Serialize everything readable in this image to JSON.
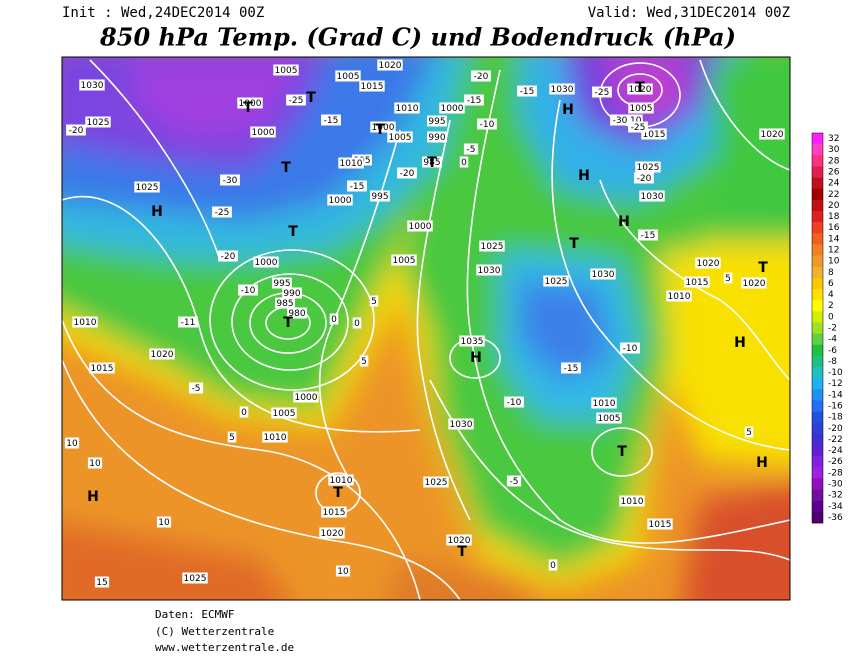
{
  "header": {
    "init": "Init : Wed,24DEC2014 00Z",
    "valid": "Valid: Wed,31DEC2014 00Z",
    "title": "850 hPa Temp. (Grad C) und Bodendruck (hPa)"
  },
  "map": {
    "labels": [
      "1030",
      "1025",
      "1005",
      "1005",
      "1020",
      "1015",
      "1000",
      "1010",
      "1000",
      "995",
      "990",
      "1000",
      "1005",
      "995",
      "985",
      "1010",
      "1000",
      "995",
      "1000",
      "1025",
      "1000",
      "1005",
      "1025",
      "1030",
      "1025",
      "1030",
      "1000",
      "995",
      "990",
      "985",
      "980",
      "1010",
      "1020",
      "1015",
      "1000",
      "1005",
      "1010",
      "1035",
      "1030",
      "1010",
      "1005",
      "1010",
      "1015",
      "1025",
      "1020",
      "1020",
      "1010",
      "1015",
      "1025",
      "1020",
      "1015",
      "1010",
      "1020",
      "1030",
      "1020",
      "1005",
      "1010",
      "1015",
      "1025",
      "1030",
      "1020",
      "-20",
      "-25",
      "-30",
      "-25",
      "-20",
      "-10",
      "-11",
      "-5",
      "0",
      "5",
      "0",
      "0",
      "5",
      "5",
      "-15",
      "-15",
      "-20",
      "-15",
      "-10",
      "-5",
      "0",
      "-20",
      "-15",
      "-25",
      "-30",
      "-25",
      "-20",
      "-15",
      "-15",
      "-10",
      "-10",
      "-5",
      "0",
      "5",
      "5",
      "10",
      "10",
      "10",
      "10",
      "15"
    ],
    "centers": [
      "T",
      "T",
      "T",
      "T",
      "T",
      "T",
      "T",
      "T",
      "T",
      "T",
      "T",
      "T",
      "T",
      "H",
      "H",
      "H",
      "H",
      "H",
      "H",
      "H",
      "H"
    ]
  },
  "legend": {
    "values": [
      32,
      30,
      28,
      26,
      24,
      22,
      20,
      18,
      16,
      14,
      12,
      10,
      8,
      6,
      4,
      2,
      0,
      -2,
      -4,
      -6,
      -8,
      -10,
      -12,
      -14,
      -16,
      -18,
      -20,
      -22,
      -24,
      -26,
      -28,
      -30,
      -32,
      -34,
      -36
    ],
    "colors": [
      "#ff20ff",
      "#ff40c0",
      "#ff3080",
      "#e02050",
      "#c01020",
      "#a00000",
      "#c01010",
      "#e02020",
      "#f04020",
      "#f06020",
      "#f08020",
      "#f09830",
      "#f0b030",
      "#f8c800",
      "#ffe000",
      "#ffff00",
      "#d0f000",
      "#a0e020",
      "#60d040",
      "#20c040",
      "#20c080",
      "#20c0c0",
      "#20b0f0",
      "#2090f0",
      "#2070f0",
      "#2050e0",
      "#3040d0",
      "#4030d0",
      "#6020d0",
      "#8020e0",
      "#a020e0",
      "#9010c0",
      "#7010a0",
      "#600090",
      "#500070"
    ]
  },
  "footer": {
    "source": "Daten: ECMWF",
    "copyright": "(C) Wetterzentrale",
    "url": "www.wetterzentrale.de"
  }
}
